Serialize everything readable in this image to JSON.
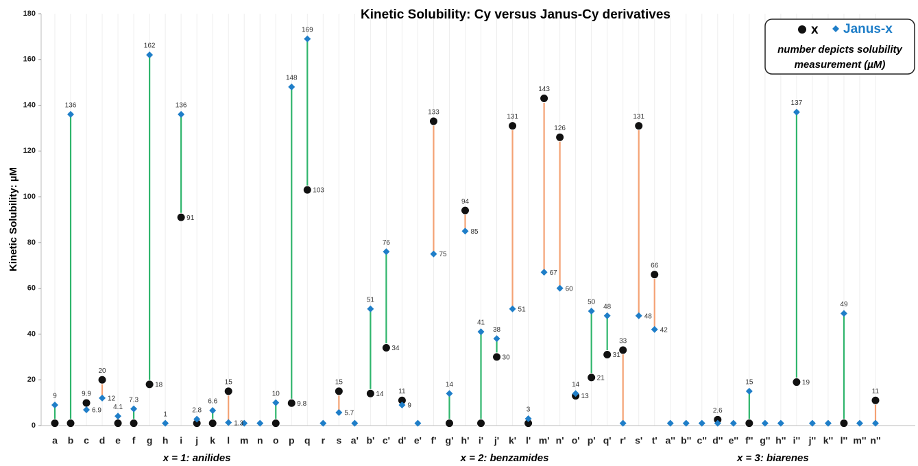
{
  "chart_data": {
    "type": "dumbbell",
    "title": "Kinetic Solubility: Cy versus Janus-Cy derivatives",
    "y_axis_label": "Kinetic Solubility: µM",
    "legend_note": [
      "number depicts solubility",
      "measurement (µM)"
    ],
    "categories": [
      "a",
      "b",
      "c",
      "d",
      "e",
      "f",
      "g",
      "h",
      "i",
      "j",
      "k",
      "l",
      "m",
      "n",
      "o",
      "p",
      "q",
      "r",
      "s",
      "a'",
      "b'",
      "c'",
      "d'",
      "e'",
      "f'",
      "g'",
      "h'",
      "i'",
      "j'",
      "k'",
      "l'",
      "m'",
      "n'",
      "o'",
      "p'",
      "q'",
      "r'",
      "s'",
      "t'",
      "a''",
      "b''",
      "c''",
      "d''",
      "e''",
      "f''",
      "g''",
      "h''",
      "i''",
      "j''",
      "k''",
      "l''",
      "m''",
      "n''"
    ],
    "groups": [
      {
        "label": "x = 1: anilides",
        "first": 0,
        "last": 18
      },
      {
        "label": "x = 2: benzamides",
        "first": 19,
        "last": 38
      },
      {
        "label": "x = 3: biarenes",
        "first": 39,
        "last": 52
      }
    ],
    "series": [
      {
        "name": "x",
        "color": "#111111",
        "marker": "circle",
        "values": [
          1,
          1,
          9.9,
          20,
          1,
          1,
          18,
          null,
          91,
          1,
          1,
          15,
          null,
          null,
          1,
          9.8,
          103,
          null,
          15,
          null,
          14,
          34,
          11,
          null,
          133,
          1,
          94,
          1,
          30,
          131,
          1,
          143,
          126,
          13,
          21,
          31,
          33,
          131,
          66,
          null,
          null,
          null,
          2.6,
          null,
          1,
          null,
          null,
          19,
          null,
          null,
          1,
          null,
          11
        ],
        "value_labels": [
          null,
          null,
          "9.9",
          "20",
          null,
          null,
          "18",
          null,
          "91",
          null,
          null,
          "15",
          null,
          null,
          null,
          "9.8",
          "103",
          null,
          "15",
          null,
          "14",
          "34",
          "11",
          null,
          "133",
          null,
          "94",
          null,
          "30",
          "131",
          null,
          "143",
          "126",
          "13",
          "21",
          "31",
          "33",
          "131",
          "66",
          null,
          null,
          null,
          "2.6",
          null,
          null,
          null,
          null,
          "19",
          null,
          null,
          null,
          null,
          "11"
        ]
      },
      {
        "name": "Janus-x",
        "color": "#1f7ec8",
        "marker": "diamond",
        "values": [
          9,
          136,
          6.9,
          12,
          4.1,
          7.3,
          162,
          1,
          136,
          2.8,
          6.6,
          1.3,
          1,
          1,
          10,
          148,
          169,
          1,
          5.7,
          1,
          51,
          76,
          9,
          1,
          75,
          14,
          85,
          41,
          38,
          51,
          3,
          67,
          60,
          14,
          50,
          48,
          1,
          48,
          42,
          1,
          1,
          1,
          1,
          1,
          15,
          1,
          1,
          137,
          1,
          1,
          49,
          1,
          1
        ],
        "value_labels": [
          "9",
          "136",
          "6.9",
          "12",
          "4.1",
          "7.3",
          "162",
          "1",
          "136",
          "2.8",
          "6.6",
          "1.3",
          null,
          null,
          "10",
          "148",
          "169",
          null,
          "5.7",
          null,
          "51",
          "76",
          "9",
          null,
          "75",
          "14",
          "85",
          "41",
          "38",
          "51",
          "3",
          "67",
          "60",
          "14",
          "50",
          "48",
          null,
          "48",
          "42",
          null,
          null,
          null,
          null,
          null,
          "15",
          null,
          null,
          "137",
          null,
          null,
          "49",
          null,
          null
        ]
      }
    ],
    "connector_colors": {
      "increase": "#2fb56c",
      "decrease": "#f4a274"
    },
    "ylim": [
      0,
      180
    ],
    "yticks": [
      0,
      20,
      40,
      60,
      80,
      100,
      120,
      140,
      160,
      180
    ],
    "vertical_grid": true
  }
}
